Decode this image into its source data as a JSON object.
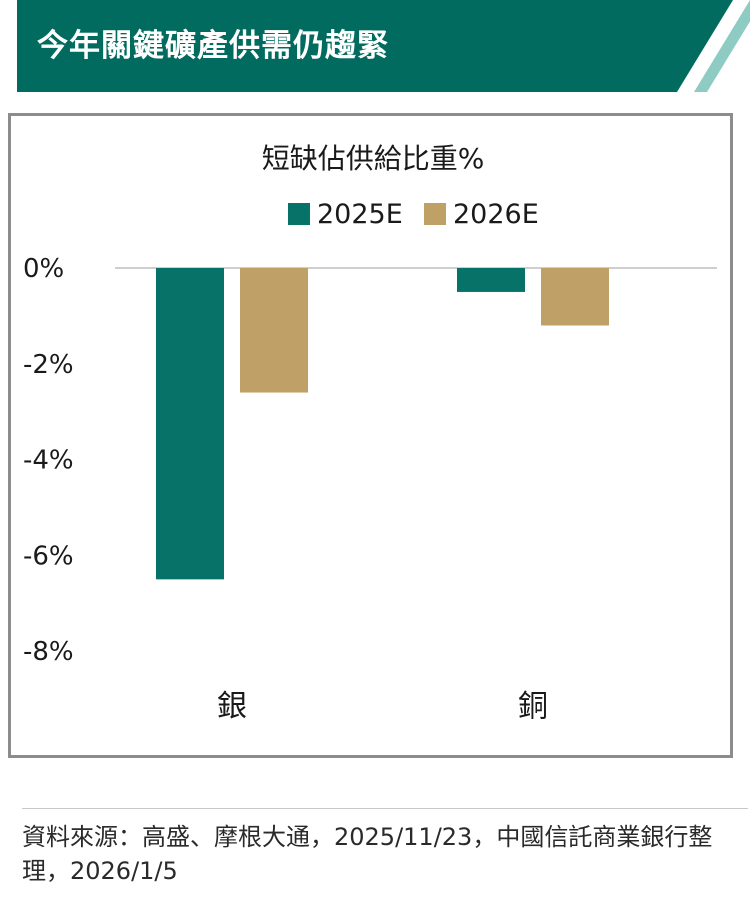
{
  "header": {
    "title": "今年關鍵礦產供需仍趨緊",
    "bg_color": "#006b5e",
    "stripe_color": "#8ecbc3"
  },
  "chart_data": {
    "type": "bar",
    "title": "短缺佔供給比重%",
    "categories": [
      "銀",
      "銅"
    ],
    "series": [
      {
        "name": "2025E",
        "color": "#077268",
        "values": [
          -6.5,
          -0.5
        ]
      },
      {
        "name": "2026E",
        "color": "#bfa066",
        "values": [
          -2.6,
          -1.2
        ]
      }
    ],
    "yticks": [
      "0%",
      "-2%",
      "-4%",
      "-6%",
      "-8%"
    ],
    "ylim": [
      -8,
      0
    ],
    "grid": false,
    "legend": "top-center",
    "xlabel": "",
    "ylabel": ""
  },
  "footer": {
    "source": "資料來源：高盛、摩根大通，2025/11/23，中國信託商業銀行整理，2026/1/5"
  }
}
